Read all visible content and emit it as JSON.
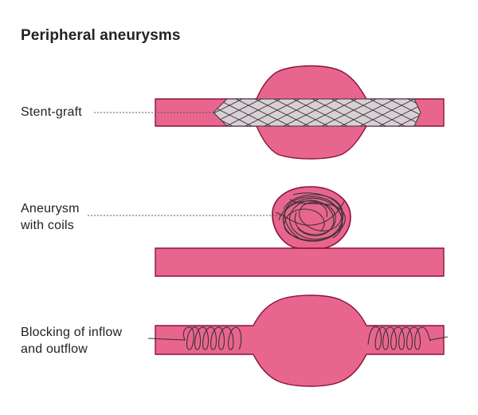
{
  "title": "Peripheral aneurysms",
  "panels": [
    {
      "id": "stent-graft",
      "label_lines": [
        "Stent-graft"
      ]
    },
    {
      "id": "coils",
      "label_lines": [
        "Aneurysm",
        "with coils"
      ]
    },
    {
      "id": "blocking",
      "label_lines": [
        "Blocking of inflow",
        "and outflow"
      ]
    }
  ],
  "colors": {
    "vessel_fill": "#e8668d",
    "vessel_outline": "#8a1240",
    "stent_fill": "#d8d0d4",
    "wire": "#3a3038",
    "leader": "#555555",
    "text": "#222222"
  }
}
